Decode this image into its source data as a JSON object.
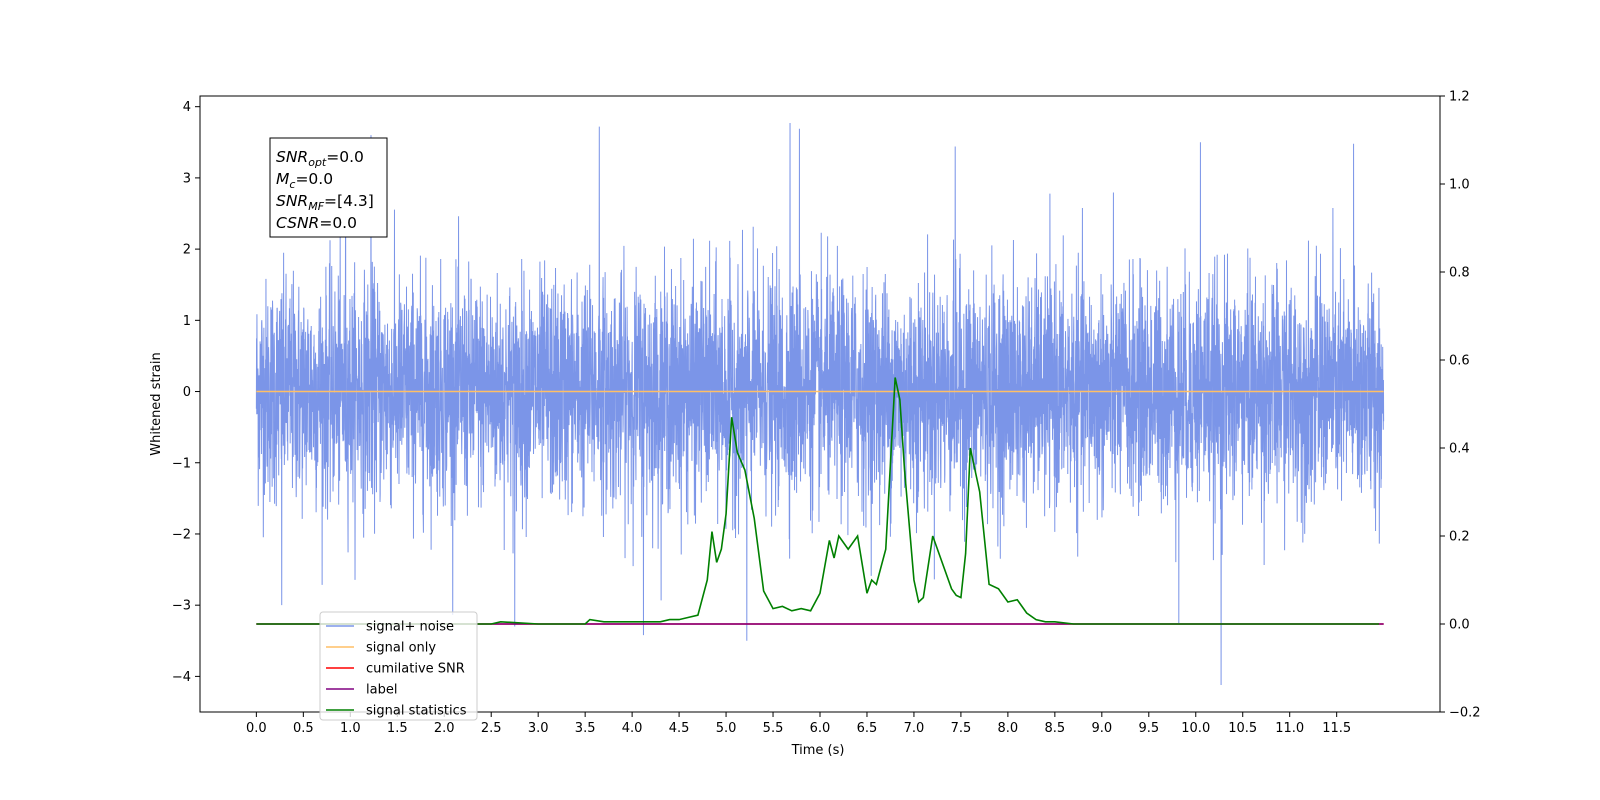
{
  "chart_data": {
    "type": "line",
    "title": "",
    "xlabel": "Time (s)",
    "ylabel": "Whitened strain",
    "xlim": [
      -0.6,
      12.6
    ],
    "ylim": [
      -4.5,
      4.15
    ],
    "y2lim": [
      -0.2,
      1.2
    ],
    "x_ticks": [
      "0.0",
      "0.5",
      "1.0",
      "1.5",
      "2.0",
      "2.5",
      "3.0",
      "3.5",
      "4.0",
      "4.5",
      "5.0",
      "5.5",
      "6.0",
      "6.5",
      "7.0",
      "7.5",
      "8.0",
      "8.5",
      "9.0",
      "9.5",
      "10.0",
      "10.5",
      "11.0",
      "11.5"
    ],
    "y_ticks": [
      "4",
      "3",
      "2",
      "1",
      "0",
      "−1",
      "−2",
      "−3",
      "−4"
    ],
    "y2_ticks": [
      "1.2",
      "1.0",
      "0.8",
      "0.6",
      "0.4",
      "0.2",
      "0.0",
      "−0.2"
    ],
    "grid": false,
    "legend_position": "lower-left",
    "info_box": {
      "lines": [
        {
          "main": "SNR",
          "sub": "opt",
          "value": "=0.0"
        },
        {
          "main": "M",
          "sub": "c",
          "value": "=0.0"
        },
        {
          "main": "SNR",
          "sub": "MF",
          "value": "=[4.3]"
        },
        {
          "main": "CSNR",
          "sub": "",
          "value": "=0.0"
        }
      ]
    },
    "series": [
      {
        "name": "signal+ noise",
        "color": "#7b95e8",
        "axis": "left",
        "description_note": "dense whitened noise, sampled at 4096 Hz",
        "x_range": [
          0.0,
          12.0
        ],
        "envelope_typical": [
          -2.1,
          2.4
        ],
        "spikes": [
          {
            "x": 0.95,
            "y": 3.3
          },
          {
            "x": 1.22,
            "y": 3.6
          },
          {
            "x": 3.65,
            "y": 3.72
          },
          {
            "x": 5.68,
            "y": 3.77
          },
          {
            "x": 5.78,
            "y": 3.69
          },
          {
            "x": 7.44,
            "y": 3.44
          },
          {
            "x": 10.05,
            "y": 3.5
          },
          {
            "x": 11.68,
            "y": 3.48
          },
          {
            "x": 0.27,
            "y": -3.0
          },
          {
            "x": 4.12,
            "y": -3.42
          },
          {
            "x": 5.22,
            "y": -3.5
          },
          {
            "x": 9.82,
            "y": -3.25
          },
          {
            "x": 10.27,
            "y": -4.12
          },
          {
            "x": 2.75,
            "y": -3.3
          }
        ]
      },
      {
        "name": "signal only",
        "color": "#ffbf66",
        "axis": "left",
        "x": [
          0.0,
          12.0
        ],
        "y": [
          0.0,
          0.0
        ]
      },
      {
        "name": "cumilative SNR",
        "color": "#ff0000",
        "axis": "right",
        "x": [
          0.0,
          12.0
        ],
        "y": [
          0.0,
          0.0
        ]
      },
      {
        "name": "label",
        "color": "#800080",
        "axis": "right",
        "x": [
          0.0,
          12.0
        ],
        "y": [
          0.0,
          0.0
        ]
      },
      {
        "name": "signal statistics",
        "color": "#008000",
        "axis": "right",
        "x": [
          0.0,
          1.0,
          2.0,
          2.5,
          2.6,
          3.0,
          3.5,
          3.55,
          3.7,
          4.0,
          4.3,
          4.4,
          4.5,
          4.6,
          4.7,
          4.8,
          4.85,
          4.9,
          4.95,
          5.0,
          5.06,
          5.12,
          5.2,
          5.3,
          5.4,
          5.5,
          5.6,
          5.7,
          5.8,
          5.9,
          6.0,
          6.1,
          6.15,
          6.2,
          6.3,
          6.4,
          6.5,
          6.55,
          6.6,
          6.7,
          6.8,
          6.85,
          6.9,
          7.0,
          7.05,
          7.1,
          7.2,
          7.3,
          7.4,
          7.45,
          7.5,
          7.55,
          7.6,
          7.7,
          7.8,
          7.9,
          8.0,
          8.1,
          8.15,
          8.2,
          8.3,
          8.4,
          8.5,
          8.7,
          9.0,
          10.0,
          11.0,
          11.95
        ],
        "y": [
          0.0,
          0.0,
          0.0,
          0.0,
          0.005,
          0.0,
          0.0,
          0.01,
          0.005,
          0.005,
          0.005,
          0.01,
          0.01,
          0.015,
          0.02,
          0.1,
          0.21,
          0.14,
          0.17,
          0.25,
          0.47,
          0.39,
          0.35,
          0.24,
          0.075,
          0.035,
          0.04,
          0.03,
          0.035,
          0.03,
          0.07,
          0.19,
          0.15,
          0.2,
          0.17,
          0.2,
          0.07,
          0.1,
          0.09,
          0.17,
          0.56,
          0.51,
          0.35,
          0.1,
          0.05,
          0.06,
          0.2,
          0.14,
          0.08,
          0.065,
          0.06,
          0.16,
          0.4,
          0.3,
          0.09,
          0.08,
          0.05,
          0.055,
          0.04,
          0.025,
          0.01,
          0.005,
          0.005,
          0.0,
          0.0,
          0.0,
          0.0,
          0.0
        ]
      }
    ]
  }
}
